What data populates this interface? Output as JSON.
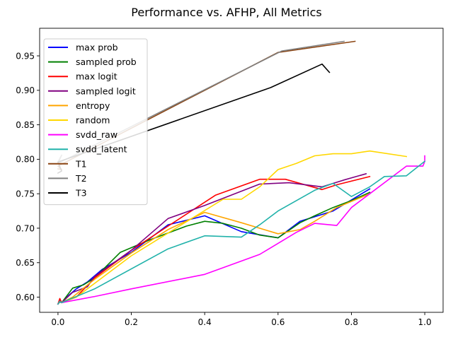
{
  "chart_data": {
    "type": "line",
    "title": "Performance vs. AFHP, All Metrics",
    "xlabel": "",
    "ylabel": "",
    "xlim": [
      -0.05,
      1.05
    ],
    "ylim": [
      0.578,
      0.99
    ],
    "xticks": [
      0.0,
      0.2,
      0.4,
      0.6,
      0.8,
      1.0
    ],
    "xtick_labels": [
      "0.0",
      "0.2",
      "0.4",
      "0.6",
      "0.8",
      "1.0"
    ],
    "yticks": [
      0.6,
      0.65,
      0.7,
      0.75,
      0.8,
      0.85,
      0.9,
      0.95
    ],
    "ytick_labels": [
      "0.60",
      "0.65",
      "0.70",
      "0.75",
      "0.80",
      "0.85",
      "0.90",
      "0.95"
    ],
    "grid": false,
    "legend_position": "upper left",
    "series": [
      {
        "name": "max prob",
        "color": "#0000ff",
        "x": [
          0.0,
          0.005,
          0.01,
          0.03,
          0.05,
          0.08,
          0.12,
          0.2,
          0.3,
          0.4,
          0.5,
          0.6,
          0.66,
          0.75,
          0.85
        ],
        "y": [
          0.59,
          0.595,
          0.592,
          0.603,
          0.612,
          0.622,
          0.64,
          0.665,
          0.705,
          0.718,
          0.695,
          0.686,
          0.71,
          0.725,
          0.757
        ]
      },
      {
        "name": "sampled prob",
        "color": "#008000",
        "x": [
          0.0,
          0.005,
          0.01,
          0.04,
          0.07,
          0.1,
          0.17,
          0.25,
          0.35,
          0.4,
          0.45,
          0.5,
          0.55,
          0.6,
          0.66,
          0.7,
          0.75,
          0.8,
          0.85
        ],
        "y": [
          0.59,
          0.593,
          0.592,
          0.613,
          0.618,
          0.628,
          0.665,
          0.683,
          0.703,
          0.71,
          0.707,
          0.7,
          0.69,
          0.686,
          0.708,
          0.718,
          0.73,
          0.74,
          0.752
        ]
      },
      {
        "name": "max logit",
        "color": "#ff0000",
        "x": [
          0.0,
          0.005,
          0.01,
          0.05,
          0.1,
          0.2,
          0.3,
          0.43,
          0.55,
          0.62,
          0.72,
          0.76,
          0.85
        ],
        "y": [
          0.59,
          0.598,
          0.592,
          0.6,
          0.628,
          0.668,
          0.703,
          0.748,
          0.771,
          0.771,
          0.756,
          0.763,
          0.775
        ]
      },
      {
        "name": "sampled logit",
        "color": "#800080",
        "x": [
          0.0,
          0.005,
          0.01,
          0.04,
          0.08,
          0.1,
          0.2,
          0.3,
          0.4,
          0.55,
          0.63,
          0.72,
          0.78,
          0.84
        ],
        "y": [
          0.59,
          0.594,
          0.592,
          0.607,
          0.615,
          0.63,
          0.668,
          0.714,
          0.733,
          0.764,
          0.766,
          0.76,
          0.77,
          0.779
        ]
      },
      {
        "name": "entropy",
        "color": "#ffa500",
        "x": [
          0.0,
          0.005,
          0.01,
          0.04,
          0.07,
          0.1,
          0.2,
          0.3,
          0.4,
          0.5,
          0.6,
          0.66,
          0.7,
          0.76,
          0.85
        ],
        "y": [
          0.59,
          0.594,
          0.592,
          0.6,
          0.613,
          0.626,
          0.664,
          0.698,
          0.723,
          0.708,
          0.692,
          0.698,
          0.71,
          0.73,
          0.75
        ]
      },
      {
        "name": "random",
        "color": "#ffd700",
        "x": [
          0.0,
          0.005,
          0.01,
          0.05,
          0.1,
          0.2,
          0.3,
          0.45,
          0.5,
          0.55,
          0.6,
          0.65,
          0.7,
          0.75,
          0.8,
          0.85,
          0.95
        ],
        "y": [
          0.59,
          0.594,
          0.592,
          0.6,
          0.62,
          0.66,
          0.693,
          0.742,
          0.742,
          0.76,
          0.785,
          0.794,
          0.805,
          0.808,
          0.808,
          0.812,
          0.804
        ]
      },
      {
        "name": "svdd_raw",
        "color": "#ff00ff",
        "x": [
          0.0,
          0.005,
          0.01,
          0.1,
          0.2,
          0.4,
          0.55,
          0.65,
          0.7,
          0.76,
          0.8,
          0.85,
          0.95,
          0.995,
          1.0,
          1.0
        ],
        "y": [
          0.59,
          0.594,
          0.592,
          0.601,
          0.612,
          0.633,
          0.662,
          0.694,
          0.707,
          0.704,
          0.73,
          0.75,
          0.79,
          0.79,
          0.797,
          0.805
        ]
      },
      {
        "name": "svdd_latent",
        "color": "#20b2aa",
        "x": [
          0.0,
          0.005,
          0.01,
          0.1,
          0.3,
          0.4,
          0.5,
          0.55,
          0.6,
          0.7,
          0.75,
          0.8,
          0.85,
          0.89,
          0.95,
          1.0
        ],
        "y": [
          0.59,
          0.594,
          0.592,
          0.612,
          0.67,
          0.689,
          0.687,
          0.705,
          0.725,
          0.755,
          0.765,
          0.746,
          0.76,
          0.775,
          0.776,
          0.797
        ]
      },
      {
        "name": "T1",
        "color": "#8b4513",
        "x": [
          0.0,
          0.01,
          0.0,
          0.6,
          0.81
        ],
        "y": [
          0.786,
          0.785,
          0.79,
          0.955,
          0.971
        ]
      },
      {
        "name": "T2",
        "color": "#808080",
        "x": [
          0.0,
          0.01,
          0.0,
          0.61,
          0.78
        ],
        "y": [
          0.796,
          0.806,
          0.794,
          0.957,
          0.971
        ]
      },
      {
        "name": "T3",
        "color": "#000000",
        "x": [
          0.0,
          0.01,
          0.0,
          0.58,
          0.72,
          0.74
        ],
        "y": [
          0.78,
          0.783,
          0.796,
          0.904,
          0.938,
          0.926
        ]
      }
    ]
  }
}
